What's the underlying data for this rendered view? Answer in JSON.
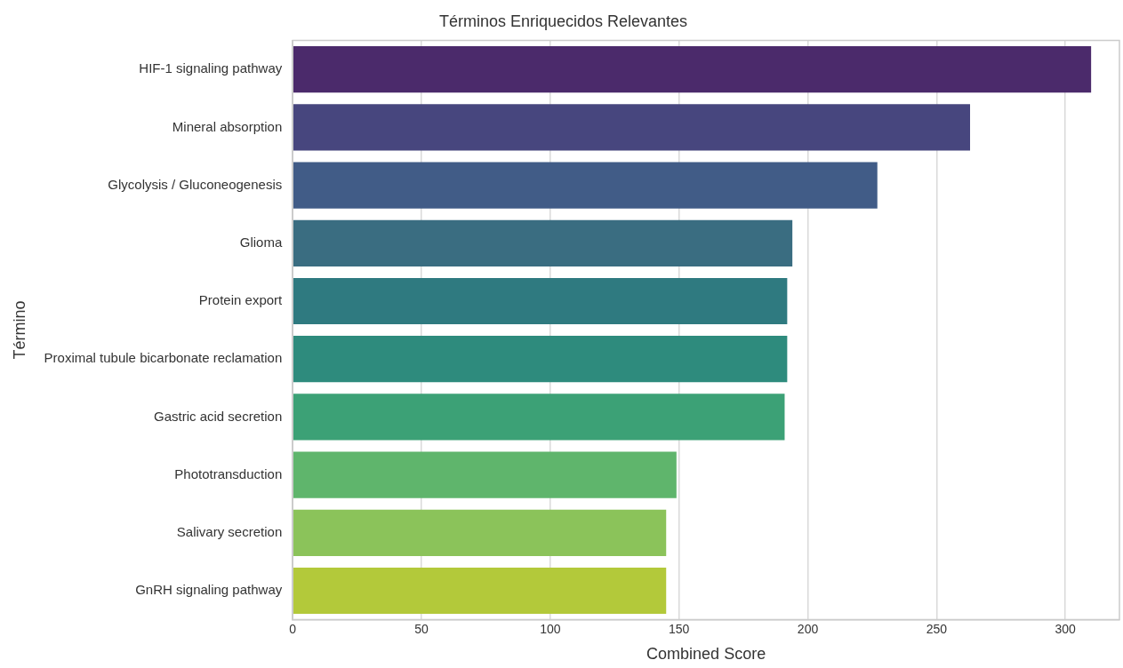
{
  "chart_data": {
    "type": "bar",
    "orientation": "horizontal",
    "title": "Términos Enriquecidos Relevantes",
    "xlabel": "Combined Score",
    "ylabel": "Término",
    "categories": [
      "HIF-1 signaling pathway",
      "Mineral absorption",
      "Glycolysis / Gluconeogenesis",
      "Glioma",
      "Protein export",
      "Proximal tubule bicarbonate reclamation",
      "Gastric acid secretion",
      "Phototransduction",
      "Salivary secretion",
      "GnRH signaling pathway"
    ],
    "values": [
      310,
      263,
      227,
      194,
      192,
      192,
      191,
      149,
      145,
      145
    ],
    "colors": [
      "#4b2a6b",
      "#47467e",
      "#415c87",
      "#3a6d81",
      "#2f7a80",
      "#2e8b7d",
      "#3ca176",
      "#5fb56c",
      "#8bc35a",
      "#b3c93a"
    ],
    "xlim": [
      0,
      321
    ],
    "xticks": [
      0,
      50,
      100,
      150,
      200,
      250,
      300
    ],
    "grid": "x"
  }
}
